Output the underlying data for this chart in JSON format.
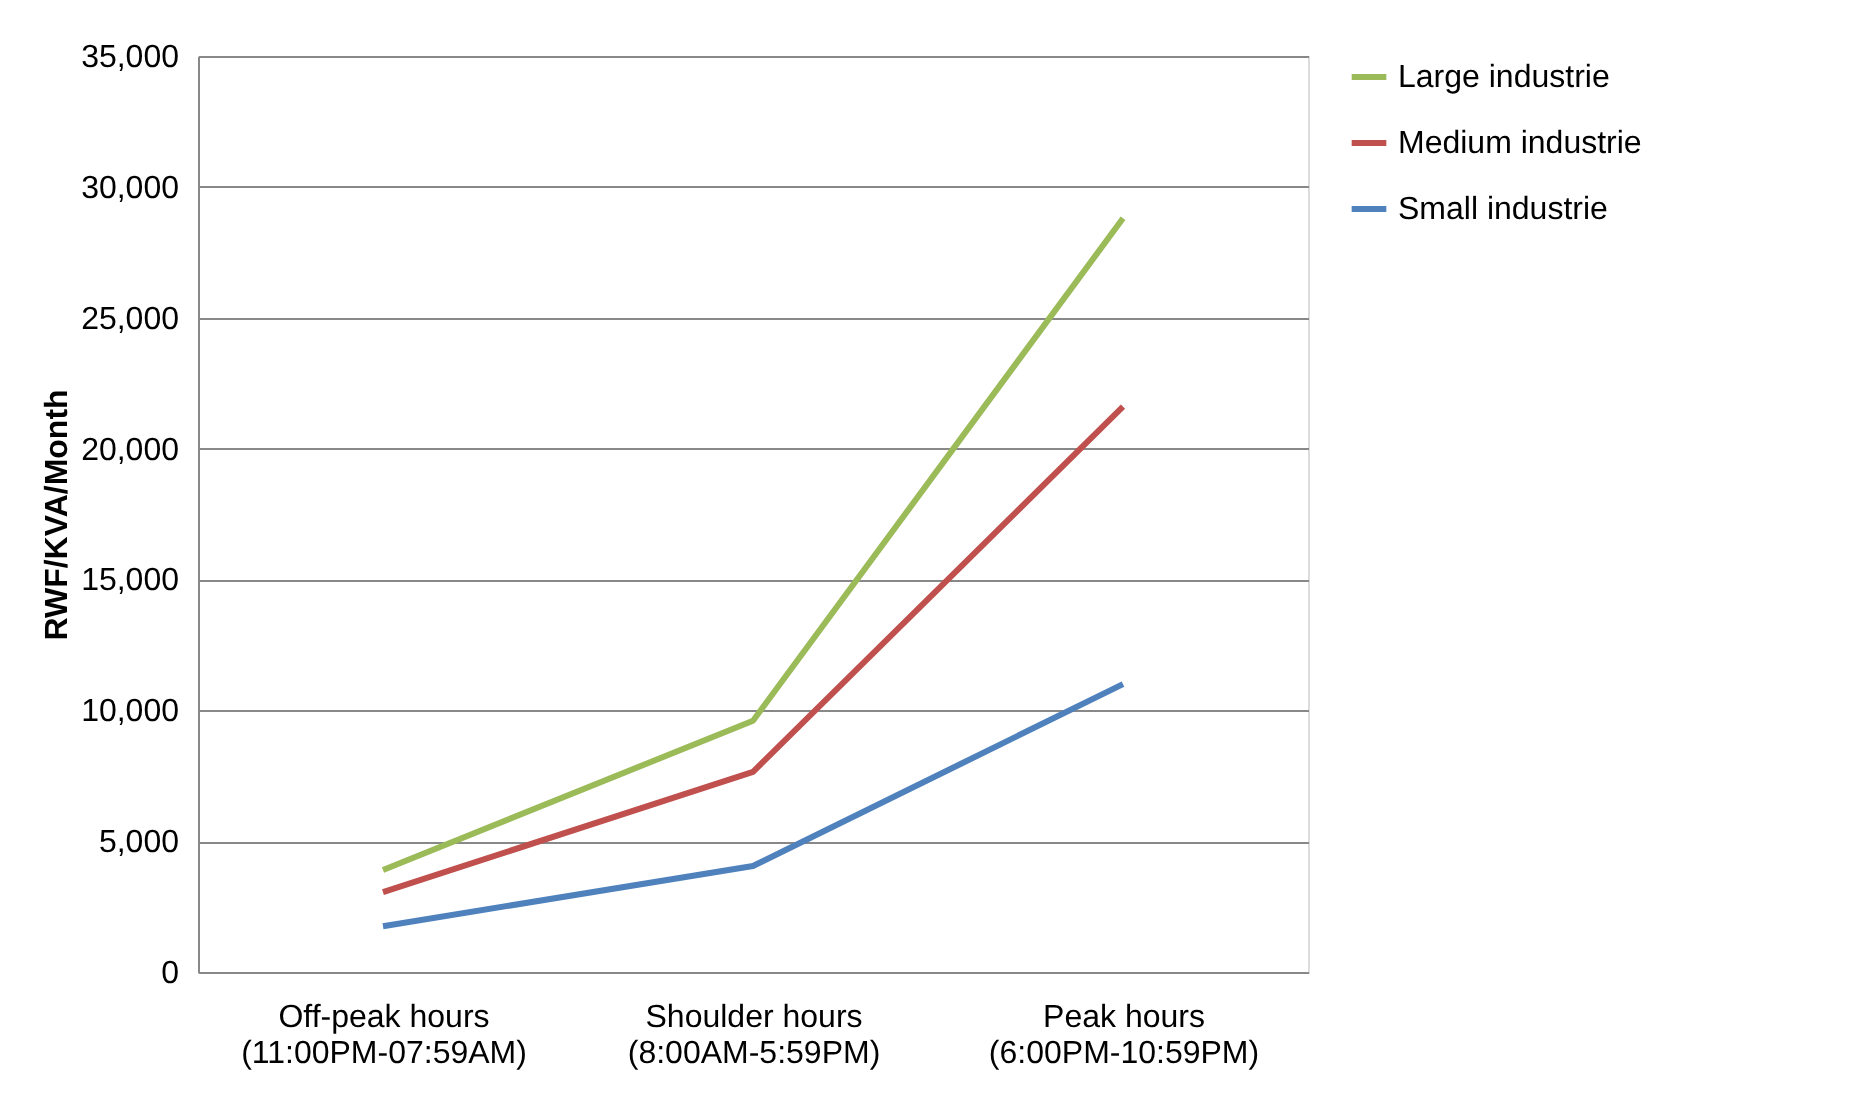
{
  "chart_data": {
    "type": "line",
    "ylabel": "RWF/KVA/Month",
    "categories": [
      "Off-peak hours\n(11:00PM-07:59AM)",
      "Shoulder hours\n(8:00AM-5:59PM)",
      "Peak hours\n(6:00PM-10:59PM)"
    ],
    "series": [
      {
        "name": "Large industrie",
        "color": "#9bbb59",
        "values": [
          3900,
          9600,
          28800
        ]
      },
      {
        "name": "Medium industrie",
        "color": "#c0504d",
        "values": [
          3050,
          7650,
          21600
        ]
      },
      {
        "name": "Small industrie",
        "color": "#4f81bd",
        "values": [
          1750,
          4050,
          11000
        ]
      }
    ],
    "ylim": [
      0,
      35000
    ],
    "yticks": [
      0,
      {
        "value": 5000,
        "label": "5,000"
      },
      {
        "value": 10000,
        "label": "10,000"
      },
      {
        "value": 15000,
        "label": "15,000"
      },
      {
        "value": 20000,
        "label": "20,000"
      },
      {
        "value": 25000,
        "label": "25,000"
      },
      {
        "value": 30000,
        "label": "30,000"
      },
      {
        "value": 35000,
        "label": "35,000"
      }
    ],
    "grid": "y",
    "legend": "right",
    "marker": "none",
    "line_style": "solid"
  }
}
